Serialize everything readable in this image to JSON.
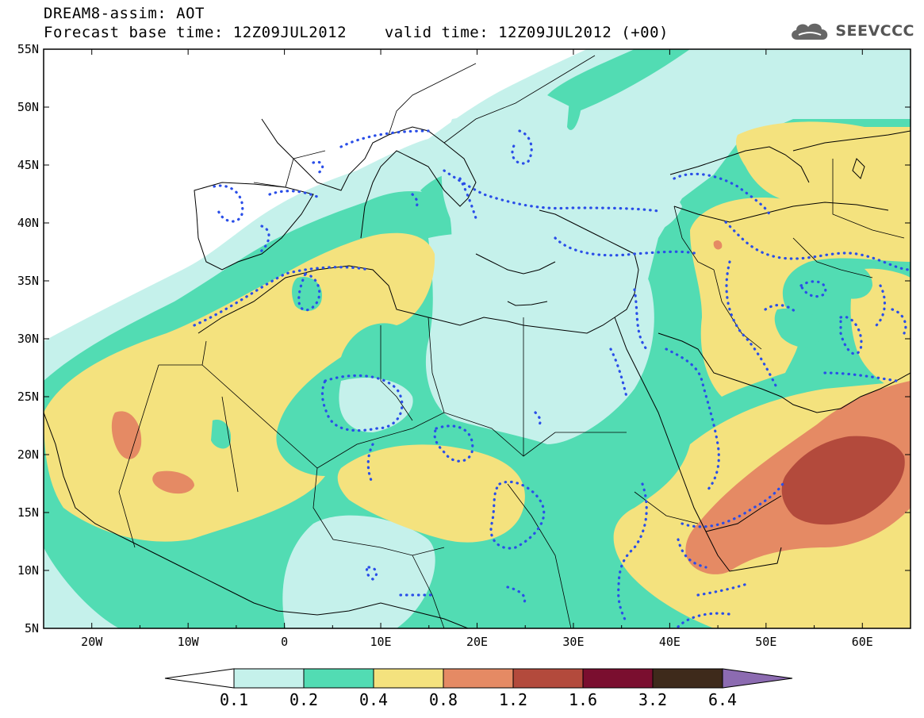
{
  "header": {
    "line1": "DREAM8-assim: AOT",
    "base_label": "Forecast base time: 12Z09JUL2012",
    "valid_label": "valid time: 12Z09JUL2012 (+00)"
  },
  "logo": {
    "text": "SEEVCCC",
    "icon": "cloud-icon"
  },
  "map": {
    "lon_ticks": [
      "20W",
      "10W",
      "0",
      "10E",
      "20E",
      "30E",
      "40E",
      "50E",
      "60E"
    ],
    "lat_ticks": [
      "55N",
      "50N",
      "45N",
      "40N",
      "35N",
      "30N",
      "25N",
      "20N",
      "15N",
      "10N",
      "5N"
    ],
    "extent_lon": [
      -25,
      65
    ],
    "extent_lat": [
      5,
      55
    ]
  },
  "colorbar": {
    "labels": [
      "0.1",
      "0.2",
      "0.4",
      "0.8",
      "1.2",
      "1.6",
      "3.2",
      "6.4"
    ],
    "colors": [
      "#ffffff",
      "#c5f1eb",
      "#52dcb3",
      "#f4e27e",
      "#e58a64",
      "#b34a3c",
      "#7a0e2f",
      "#3e2a1b",
      "#8c6bb1"
    ]
  },
  "palette": {
    "level_0_1": "#c5f1eb",
    "level_0_2": "#52dcb3",
    "level_0_4": "#f4e27e",
    "level_0_8": "#e58a64",
    "level_1_2": "#b34a3c",
    "contour": "#2a4ee8"
  }
}
